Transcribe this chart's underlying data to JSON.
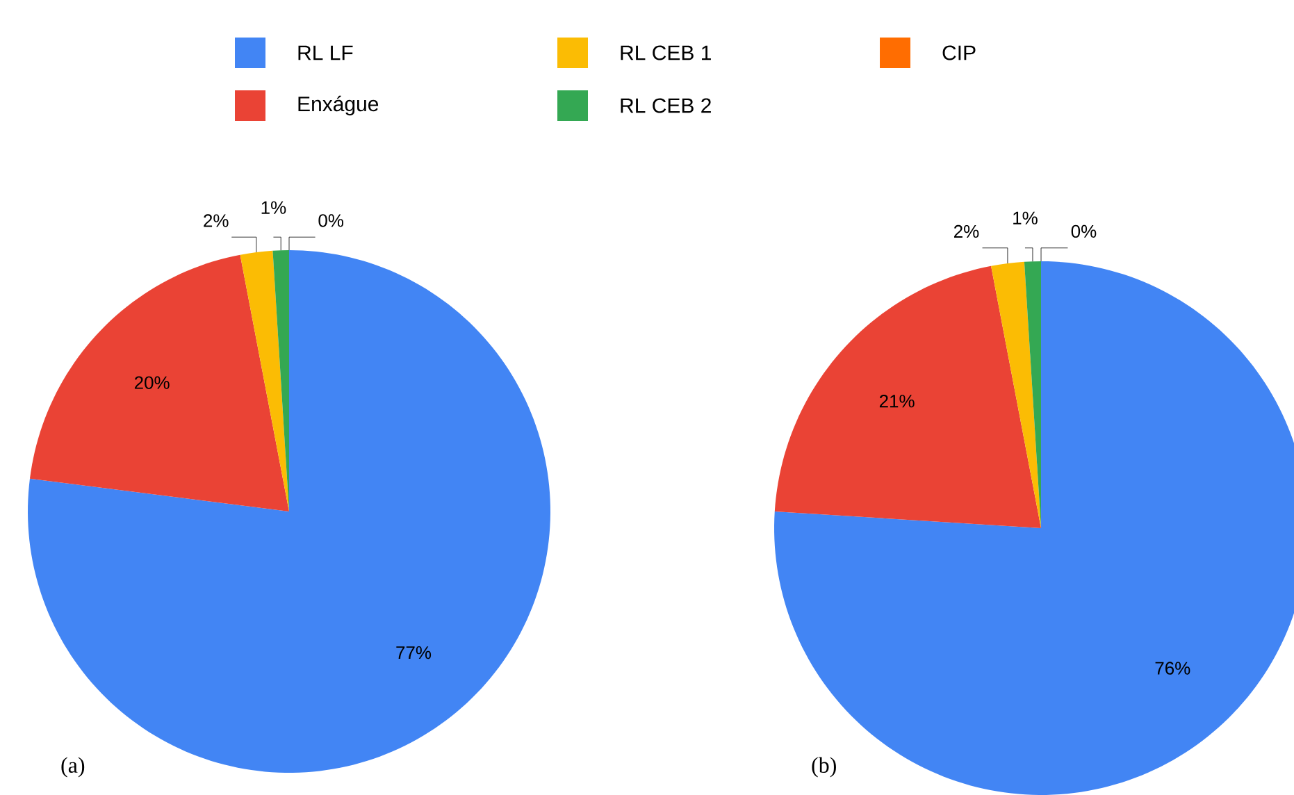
{
  "chart_data": [
    {
      "type": "pie",
      "categories": [
        "RL LF",
        "Enxágue",
        "RL CEB 1",
        "RL CEB 2",
        "CIP"
      ],
      "values": [
        77,
        20,
        2,
        1,
        0
      ],
      "value_labels": [
        "77%",
        "20%",
        "2%",
        "1%",
        "0%"
      ],
      "colors": [
        "#4285f4",
        "#ea4335",
        "#fbbc04",
        "#34a853",
        "#ff6d01"
      ],
      "legend": "top",
      "annotations": [
        "(a)"
      ]
    },
    {
      "type": "pie",
      "categories": [
        null,
        null,
        null,
        null,
        null
      ],
      "values": [
        76,
        21,
        2,
        1,
        0
      ],
      "value_labels": [
        "76%",
        "21%",
        "2%",
        "1%",
        "0%"
      ],
      "colors": [
        "#4285f4",
        "#ea4335",
        "#fbbc04",
        "#34a853",
        "#ff6d01"
      ],
      "annotations": [
        "(b)"
      ]
    }
  ]
}
